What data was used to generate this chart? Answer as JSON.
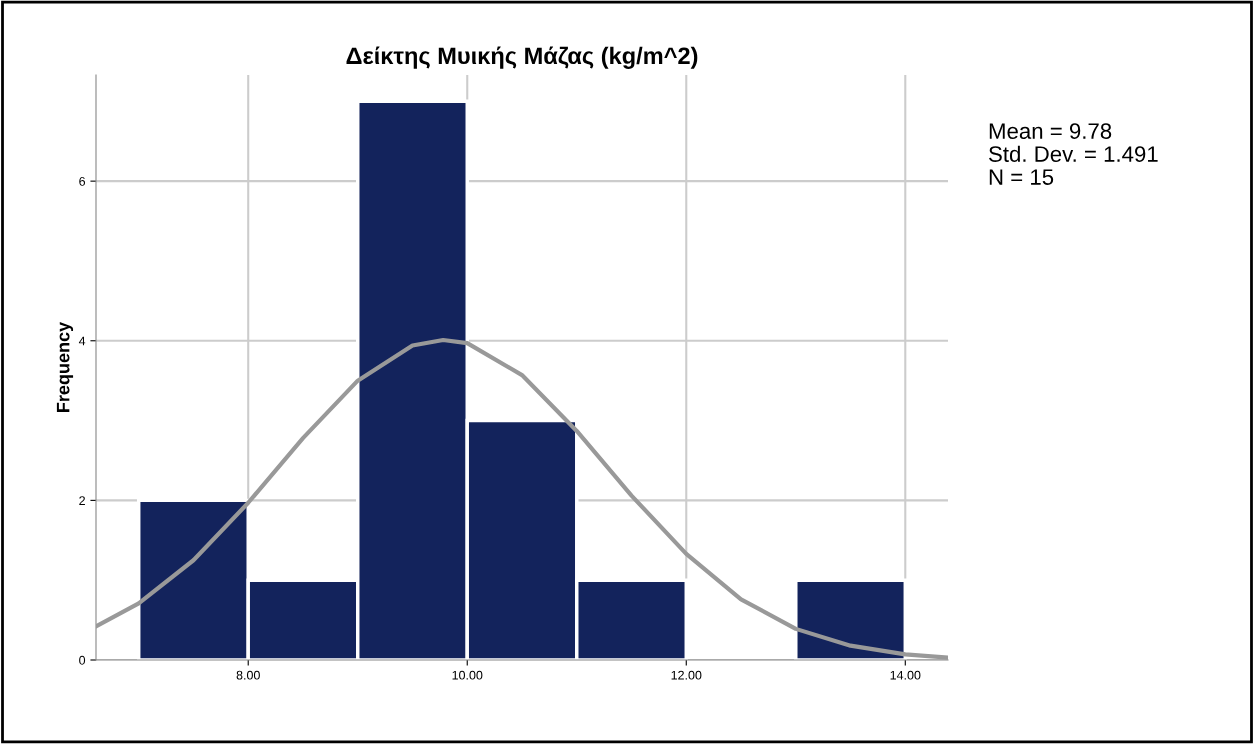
{
  "chart_data": {
    "type": "histogram",
    "title": "Δείκτης Μυικής Μάζας (kg/m^2)",
    "ylabel": "Frequency",
    "bins": [
      7,
      8,
      9,
      10,
      11,
      12,
      13,
      14
    ],
    "values": [
      2,
      1,
      7,
      3,
      1,
      0,
      1
    ],
    "color": "#13235c",
    "series": [
      {
        "type": "line",
        "color": "#999999",
        "x": [
          6.61,
          7,
          7.5,
          8,
          8.5,
          9,
          9.5,
          9.78,
          10,
          10.5,
          11,
          11.5,
          12,
          12.5,
          13,
          13.5,
          14,
          14.39
        ],
        "values": [
          0.42,
          0.71,
          1.25,
          1.97,
          2.78,
          3.5,
          3.94,
          4.01,
          3.97,
          3.57,
          2.87,
          2.06,
          1.33,
          0.76,
          0.39,
          0.18,
          0.07,
          0.03
        ]
      }
    ],
    "xlim": [
      6.61,
      14.39
    ],
    "ylim": [
      0,
      7.33
    ],
    "xticks": [
      {
        "value": 8,
        "label": "8.00"
      },
      {
        "value": 10,
        "label": "10.00"
      },
      {
        "value": 12,
        "label": "12.00"
      },
      {
        "value": 14,
        "label": "14.00"
      }
    ],
    "yticks": [
      0,
      2,
      4,
      6
    ],
    "grid": true,
    "annotations": [
      "Mean = 9.78",
      "Std. Dev. = 1.491",
      "N = 15"
    ]
  }
}
